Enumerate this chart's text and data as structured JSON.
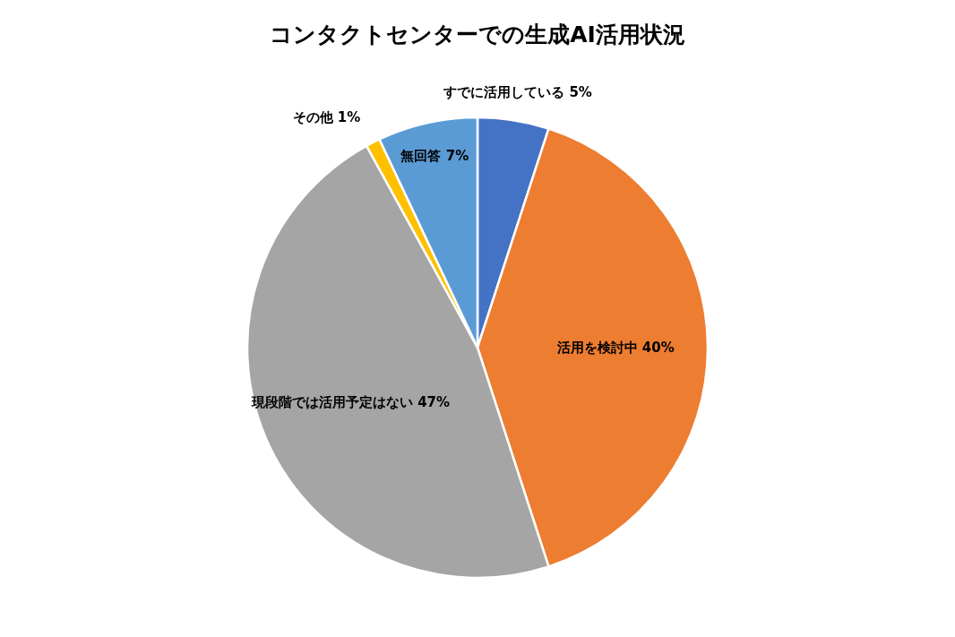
{
  "chart_data": {
    "type": "pie",
    "title": "コンタクトセンターでの生成AI活用状況",
    "categories": [
      "すでに活用している",
      "活用を検討中",
      "現段階では活用予定はない",
      "その他",
      "無回答"
    ],
    "values": [
      5,
      40,
      47,
      1,
      7
    ],
    "value_labels": [
      "5%",
      "40%",
      "47%",
      "1%",
      "7%"
    ],
    "colors": [
      "#4472c4",
      "#ed7d31",
      "#a5a5a5",
      "#ffc000",
      "#5b9bd5"
    ],
    "legend": false
  }
}
